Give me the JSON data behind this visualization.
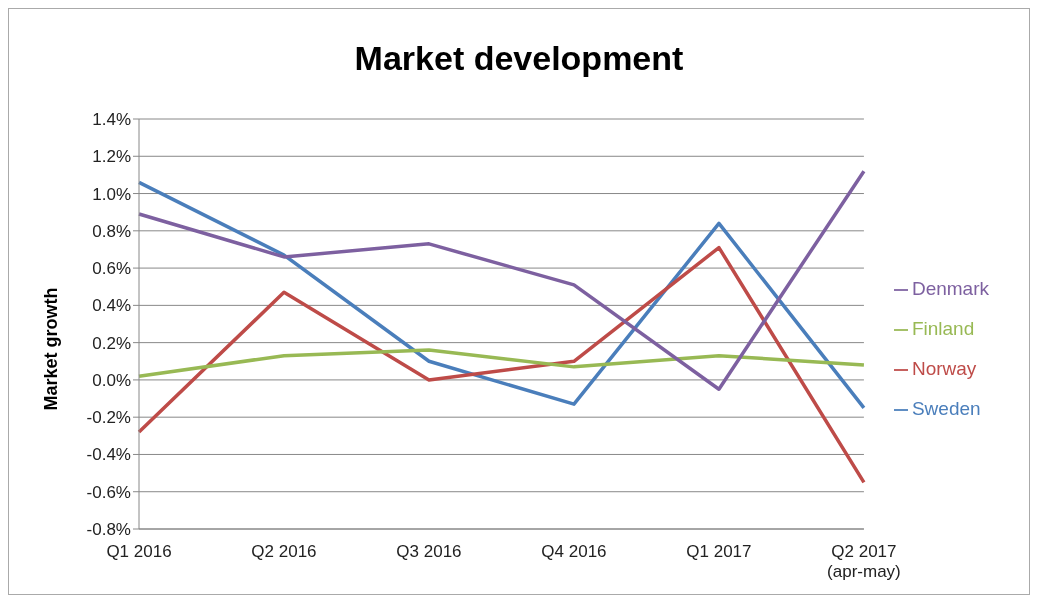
{
  "chart_data": {
    "type": "line",
    "title": "Market development",
    "ylabel": "Market growth",
    "categories": [
      "Q1 2016",
      "Q2 2016",
      "Q3 2016",
      "Q4 2016",
      "Q1 2017",
      "Q2 2017\n(apr-may)"
    ],
    "series": [
      {
        "name": "Sweden",
        "color": "#4a7ebb",
        "values": [
          1.06,
          0.67,
          0.1,
          -0.13,
          0.84,
          -0.15
        ]
      },
      {
        "name": "Norway",
        "color": "#be4b48",
        "values": [
          -0.28,
          0.47,
          0.0,
          0.1,
          0.71,
          -0.55
        ]
      },
      {
        "name": "Finland",
        "color": "#98b954",
        "values": [
          0.02,
          0.13,
          0.16,
          0.07,
          0.13,
          0.08
        ]
      },
      {
        "name": "Denmark",
        "color": "#7d60a0",
        "values": [
          0.89,
          0.66,
          0.73,
          0.51,
          -0.05,
          1.12
        ]
      }
    ],
    "ylim": [
      -0.8,
      1.4
    ],
    "yticks": [
      {
        "value": -0.8,
        "label": "-0.8%"
      },
      {
        "value": -0.6,
        "label": "-0.6%"
      },
      {
        "value": -0.4,
        "label": "-0.4%"
      },
      {
        "value": -0.2,
        "label": "-0.2%"
      },
      {
        "value": 0,
        "label": "0.0%"
      },
      {
        "value": 0.2,
        "label": "0.2%"
      },
      {
        "value": 0.4,
        "label": "0.4%"
      },
      {
        "value": 0.6,
        "label": "0.6%"
      },
      {
        "value": 0.8,
        "label": "0.8%"
      },
      {
        "value": 1.0,
        "label": "1.0%"
      },
      {
        "value": 1.2,
        "label": "1.2%"
      },
      {
        "value": 1.4,
        "label": "1.4%"
      }
    ],
    "grid": "y",
    "legend": "right",
    "marker": "none",
    "line_style": "solid"
  }
}
